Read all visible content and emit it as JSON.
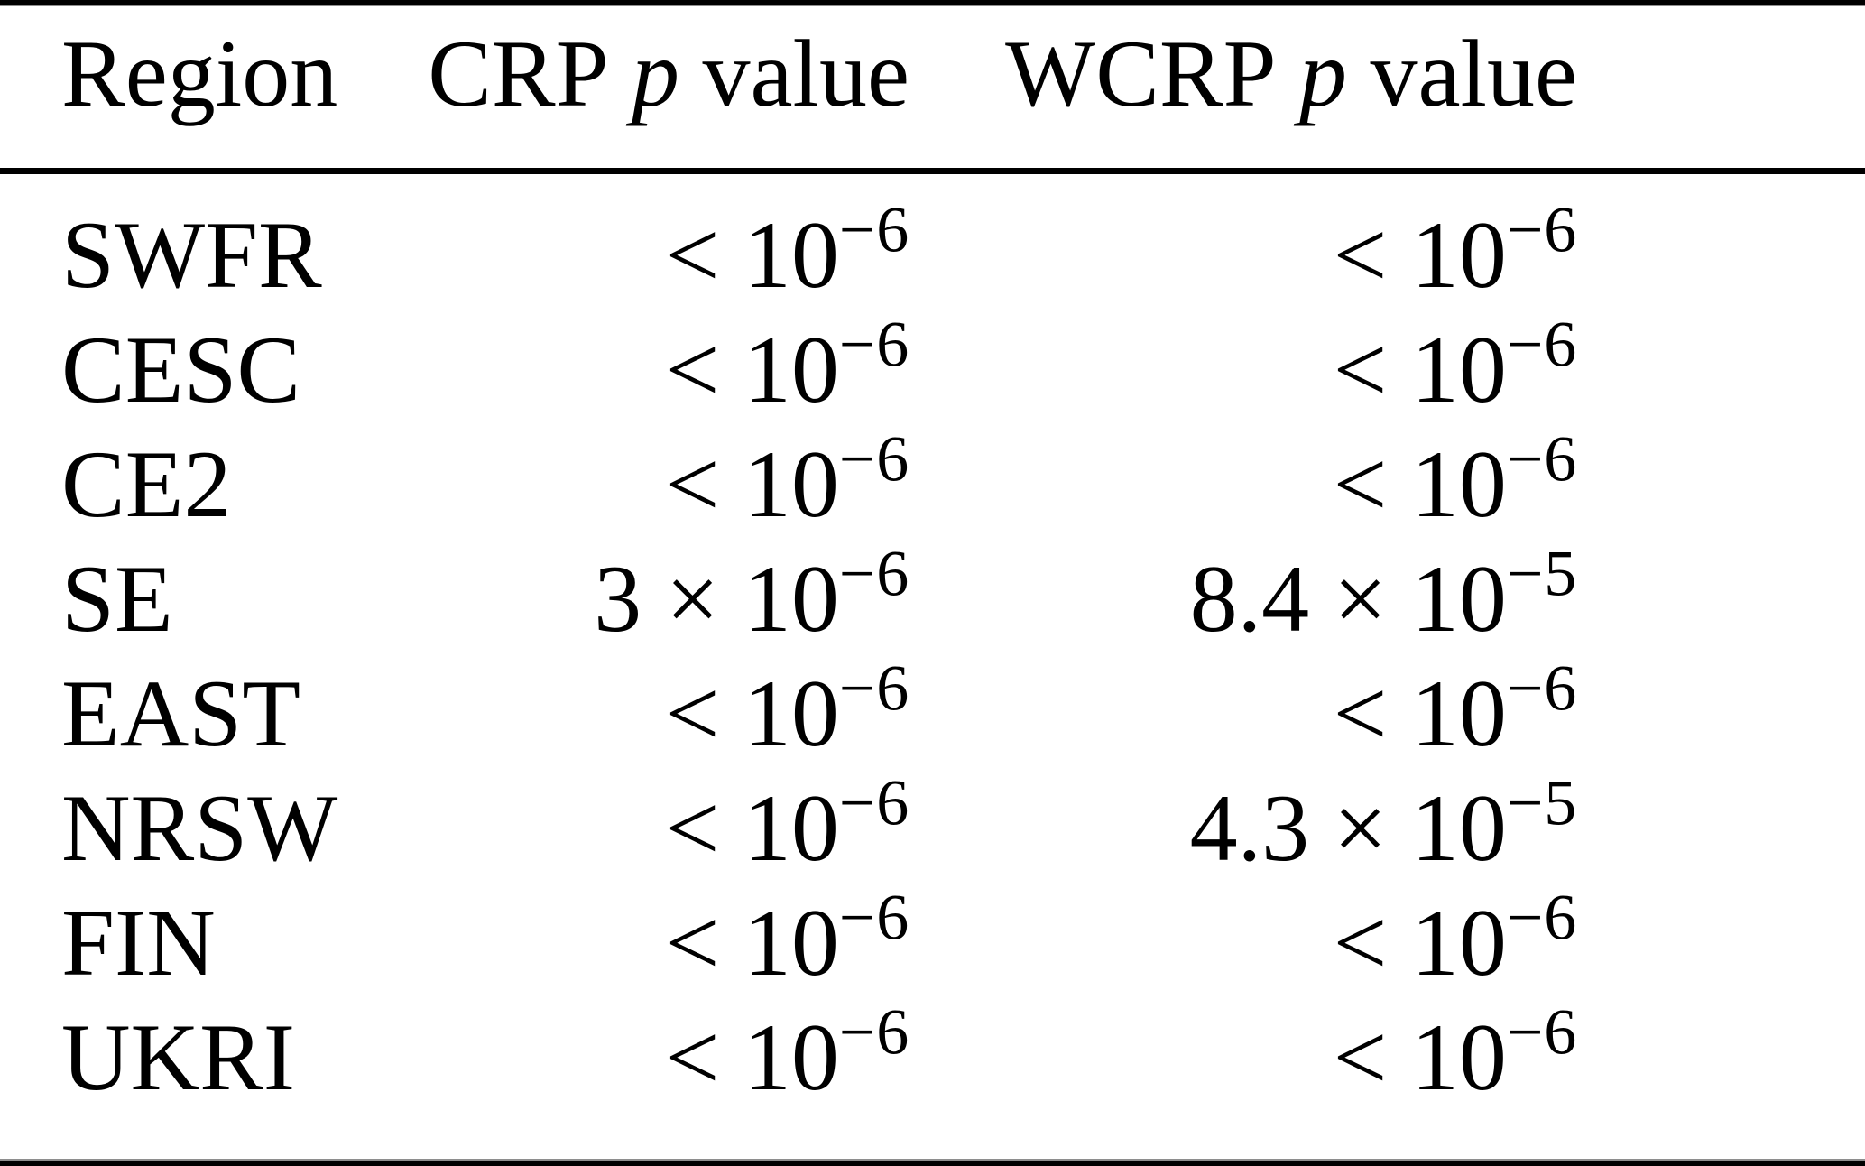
{
  "colors": {
    "background": "#ffffff",
    "text": "#000000",
    "rule": "#000000",
    "rule_edge": "#8e8e8e"
  },
  "table": {
    "header": {
      "region": "Region",
      "crp": "CRP",
      "wcrp": "WCRP",
      "p_symbol": "p",
      "value_word": "value"
    },
    "rows": [
      {
        "region": "SWFR",
        "crp": {
          "base": "< 10",
          "exp": "−6"
        },
        "wcrp": {
          "base": "< 10",
          "exp": "−6"
        }
      },
      {
        "region": "CESC",
        "crp": {
          "base": "< 10",
          "exp": "−6"
        },
        "wcrp": {
          "base": "< 10",
          "exp": "−6"
        }
      },
      {
        "region": "CE2",
        "crp": {
          "base": "< 10",
          "exp": "−6"
        },
        "wcrp": {
          "base": "< 10",
          "exp": "−6"
        }
      },
      {
        "region": "SE",
        "crp": {
          "base": "3 × 10",
          "exp": "−6"
        },
        "wcrp": {
          "base": "8.4 × 10",
          "exp": "−5"
        }
      },
      {
        "region": "EAST",
        "crp": {
          "base": "< 10",
          "exp": "−6"
        },
        "wcrp": {
          "base": "< 10",
          "exp": "−6"
        }
      },
      {
        "region": "NRSW",
        "crp": {
          "base": "< 10",
          "exp": "−6"
        },
        "wcrp": {
          "base": "4.3 × 10",
          "exp": "−5"
        }
      },
      {
        "region": "FIN",
        "crp": {
          "base": "< 10",
          "exp": "−6"
        },
        "wcrp": {
          "base": "< 10",
          "exp": "−6"
        }
      },
      {
        "region": "UKRI",
        "crp": {
          "base": "< 10",
          "exp": "−6"
        },
        "wcrp": {
          "base": "< 10",
          "exp": "−6"
        }
      }
    ]
  }
}
